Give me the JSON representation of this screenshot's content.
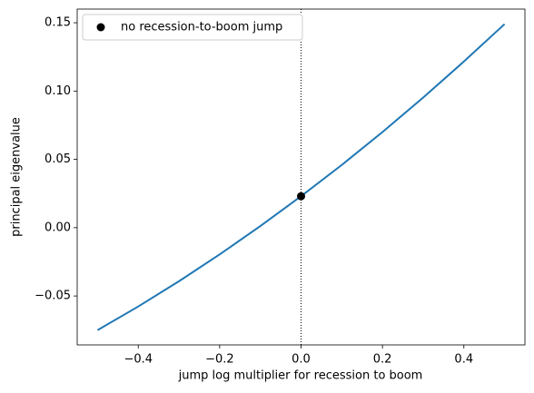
{
  "chart_data": {
    "type": "line",
    "xlabel": "jump log multiplier for recession to boom",
    "ylabel": "principal eigenvalue",
    "x": [
      -0.5,
      -0.4,
      -0.3,
      -0.2,
      -0.1,
      0,
      0.1,
      0.2,
      0.3,
      0.4,
      0.5
    ],
    "series": [
      {
        "color": "#1f77b4",
        "values": [
          -0.075,
          -0.0577,
          -0.0392,
          -0.0196,
          0.0012,
          0.023,
          0.0459,
          0.07,
          0.0952,
          0.1216,
          0.149
        ]
      }
    ],
    "marker": {
      "name": "no recession-to-boom jump",
      "x": 0,
      "y": 0.023,
      "color": "#000000"
    },
    "vline": 0,
    "xlim": [
      -0.55,
      0.55
    ],
    "ylim": [
      -0.0858,
      0.16
    ],
    "xticks": [
      {
        "value": -0.4,
        "label": "−0.4"
      },
      {
        "value": -0.2,
        "label": "−0.2"
      },
      {
        "value": 0,
        "label": "0.0"
      },
      0.2,
      0.4
    ],
    "yticks": [
      {
        "value": -0.05,
        "label": "−0.05"
      },
      {
        "value": 0,
        "label": "0.00"
      },
      0.05,
      {
        "value": 0.1,
        "label": "0.10"
      },
      0.15
    ],
    "legend": "upper left"
  }
}
